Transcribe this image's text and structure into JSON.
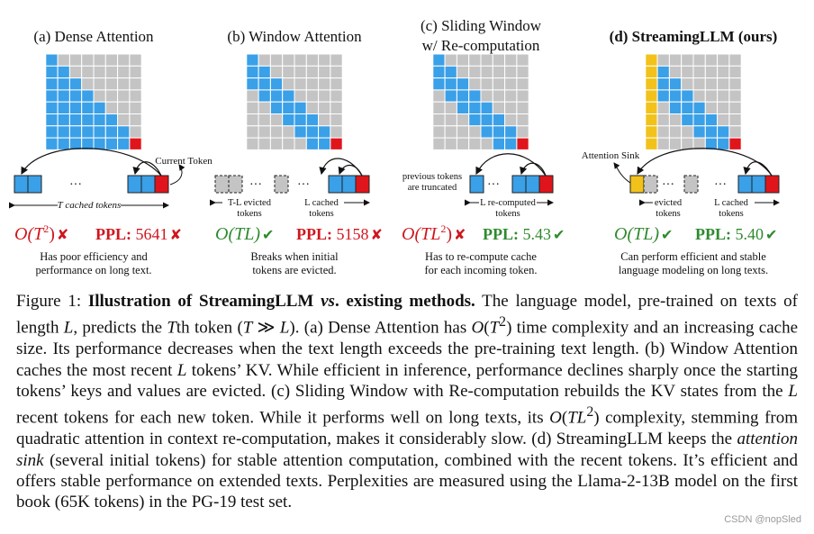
{
  "panels": [
    {
      "id": "a",
      "title_lines": [
        "(a) Dense Attention"
      ],
      "title_bold": false,
      "complexity_main": "O(T",
      "complexity_sup": "2",
      "complexity_tail": ")",
      "complexity_mark": "✘",
      "ppl_label": "PPL:",
      "ppl_value": "5641",
      "ppl_mark": "✘",
      "desc": [
        "Has poor efficiency and",
        "performance on long text."
      ],
      "annotations": {
        "current_token": "Current Token",
        "cached": "T cached tokens"
      }
    },
    {
      "id": "b",
      "title_lines": [
        "(b) Window Attention"
      ],
      "title_bold": false,
      "complexity_main": "O(TL)",
      "complexity_sup": "",
      "complexity_tail": "",
      "complexity_mark": "✔",
      "ppl_label": "PPL:",
      "ppl_value": "5158",
      "ppl_mark": "✘",
      "desc": [
        "Breaks when initial",
        "tokens are evicted."
      ],
      "annotations": {
        "evicted_1": "T-L evicted",
        "evicted_2": "tokens",
        "cached_1": "L cached",
        "cached_2": "tokens"
      }
    },
    {
      "id": "c",
      "title_lines": [
        "(c) Sliding Window",
        "w/ Re-computation"
      ],
      "title_bold": false,
      "complexity_main": "O(TL",
      "complexity_sup": "2",
      "complexity_tail": ")",
      "complexity_mark": "✘",
      "ppl_label": "PPL:",
      "ppl_value": "5.43",
      "ppl_mark": "✔",
      "desc": [
        "Has to re-compute cache",
        "for each incoming token."
      ],
      "annotations": {
        "prev_1": "previous tokens",
        "prev_2": "are truncated",
        "recomp_1": "L re-computed",
        "recomp_2": "tokens"
      }
    },
    {
      "id": "d",
      "title_lines": [
        "(d) StreamingLLM (ours)"
      ],
      "title_bold": true,
      "complexity_main": "O(TL)",
      "complexity_sup": "",
      "complexity_tail": "",
      "complexity_mark": "✔",
      "ppl_label": "PPL:",
      "ppl_value": "5.40",
      "ppl_mark": "✔",
      "desc": [
        "Can perform efficient and stable",
        "language modeling on long texts."
      ],
      "annotations": {
        "sink": "Attention Sink",
        "evicted_1": "evicted",
        "evicted_2": "tokens",
        "cached_1": "L cached",
        "cached_2": "tokens"
      }
    }
  ],
  "ellipsis": "···",
  "colors": {
    "blue": "#3aa0e8",
    "red": "#e0151b",
    "yellow": "#f2c21a",
    "gray": "#c4c4c4",
    "gridline": "#ffffff",
    "ppl_bad": "#d0161e",
    "ppl_good": "#2f8a2f",
    "mark_bad": "#d0161e",
    "mark_good": "#2f8a2f"
  },
  "caption": {
    "label": "Figure 1: ",
    "bold": "Illustration of StreamingLLM ",
    "bold_italic": "vs",
    "bold_end": ". existing methods.",
    "t1": " The language model, pre-trained on texts of length ",
    "L1": "L",
    "t2": ", predicts the ",
    "T1": "T",
    "t3": "th token (",
    "T2": "T",
    "gg": " ≫ ",
    "L2": "L",
    "t4": "). (a) Dense Attention has ",
    "o1": "O",
    "o1b": "(",
    "o1T": "T",
    "o1sup": "2",
    "o1c": ")",
    "t5": " time complexity and an increasing cache size. Its performance decreases when the text length exceeds the pre-training text length. (b) Window Attention caches the most recent ",
    "L3": "L",
    "t6": " tokens’ KV. While efficient in inference, performance declines sharply once the starting tokens’ keys and values are evicted. (c) Sliding Window with Re-computation rebuilds the KV states from the ",
    "L4": "L",
    "t7": " recent tokens for each new token. While it performs well on long texts, its ",
    "o2": "O",
    "o2b": "(",
    "o2T": "TL",
    "o2sup": "2",
    "o2c": ")",
    "t8": " complexity, stemming from quadratic attention in context re-computation, makes it considerably slow. (d) StreamingLLM keeps the ",
    "sink": "attention sink",
    "t9": " (several initial tokens) for stable attention computation, combined with the recent tokens. It’s efficient and offers stable performance on extended texts. Perplexities are measured using the Llama-2-13B model on the first book (65K tokens) in the PG-19 test set."
  },
  "watermark": "CSDN @nopSled"
}
